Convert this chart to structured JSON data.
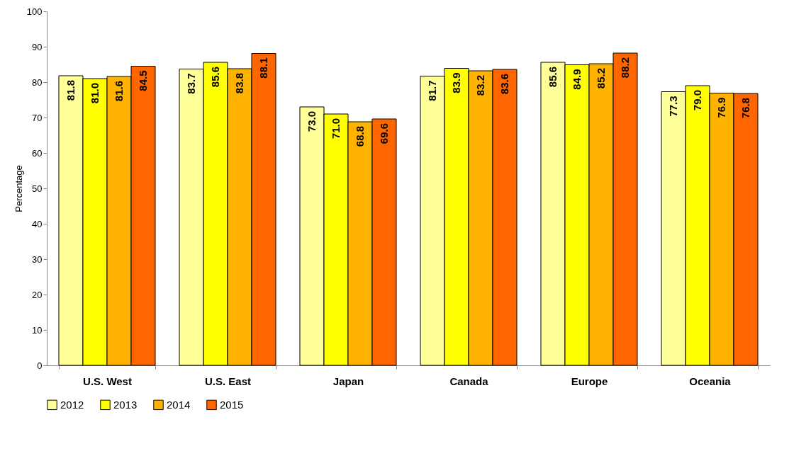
{
  "chart_data": {
    "type": "bar",
    "ylabel": "Percentage",
    "categories": [
      "U.S. West",
      "U.S. East",
      "Japan",
      "Canada",
      "Europe",
      "Oceania"
    ],
    "series": [
      {
        "name": "2012",
        "color": "#ffff99",
        "values": [
          81.8,
          83.7,
          73.0,
          81.7,
          85.6,
          77.3
        ],
        "value_labels": [
          "81.8",
          "83.7",
          "73.0",
          "81.7",
          "85.6",
          "77.3"
        ]
      },
      {
        "name": "2013",
        "color": "#ffff00",
        "values": [
          81.0,
          85.6,
          71.0,
          83.9,
          84.9,
          79.0
        ],
        "value_labels": [
          "81.0",
          "85.6",
          "71.0",
          "83.9",
          "84.9",
          "79.0"
        ]
      },
      {
        "name": "2014",
        "color": "#ffb300",
        "values": [
          81.6,
          83.8,
          68.8,
          83.2,
          85.2,
          76.9
        ],
        "value_labels": [
          "81.6",
          "83.8",
          "68.8",
          "83.2",
          "85.2",
          "76.9"
        ]
      },
      {
        "name": "2015",
        "color": "#ff6600",
        "values": [
          84.5,
          88.1,
          69.6,
          83.6,
          88.2,
          76.8
        ],
        "value_labels": [
          "84.5",
          "88.1",
          "69.6",
          "83.6",
          "88.2",
          "76.8"
        ]
      }
    ],
    "ylim": [
      0,
      100
    ],
    "yticks": [
      0,
      10,
      20,
      30,
      40,
      50,
      60,
      70,
      80,
      90,
      100
    ],
    "grid": false,
    "legend": "bottom"
  }
}
